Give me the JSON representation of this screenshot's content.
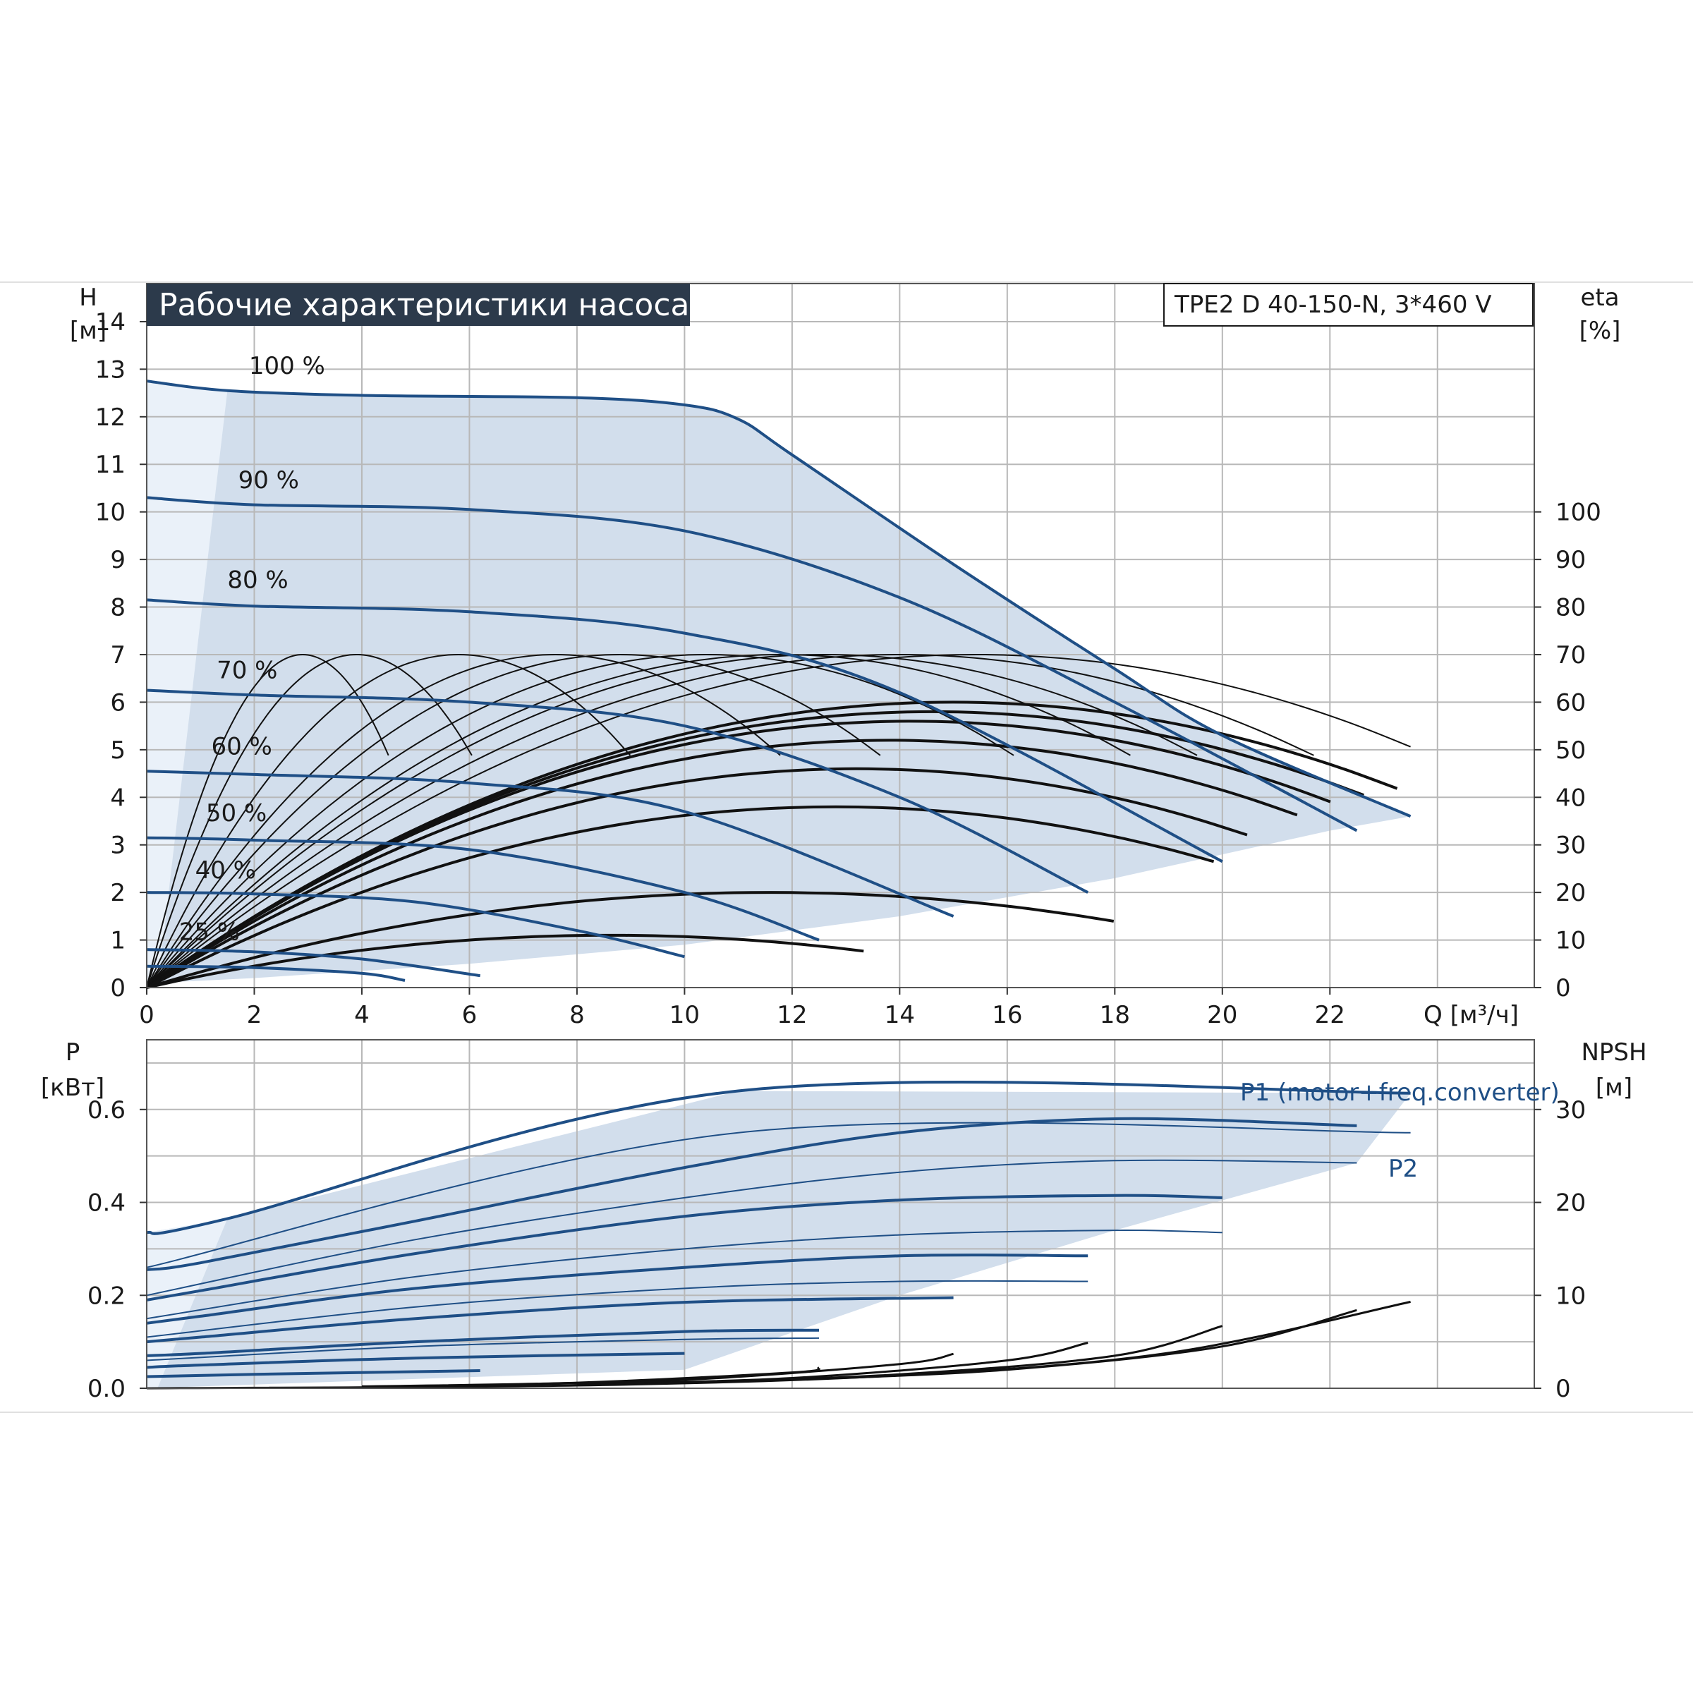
{
  "chart_data": [
    {
      "type": "line",
      "title": "Рабочие характеристики насоса",
      "model": "TPE2 D 40-150-N, 3*460 V",
      "xlabel": "Q [м³/ч]",
      "ylabel_name": "H",
      "ylabel_unit": "[м]",
      "y2label_name": "eta",
      "y2label_unit": "[%]",
      "xlim": [
        0,
        25.8
      ],
      "ylim": [
        0,
        14.8
      ],
      "y2lim": [
        0,
        148
      ],
      "grid": true,
      "xticks": [
        "0",
        "2",
        "4",
        "6",
        "8",
        "10",
        "12",
        "14",
        "16",
        "18",
        "20",
        "22"
      ],
      "yticks": [
        "0",
        "1",
        "2",
        "3",
        "4",
        "5",
        "6",
        "7",
        "8",
        "9",
        "10",
        "11",
        "12",
        "13",
        "14"
      ],
      "y2ticks": [
        "0",
        "10",
        "20",
        "30",
        "40",
        "50",
        "60",
        "70",
        "80",
        "90",
        "100"
      ],
      "operating_area_color": "#d2deec",
      "curve_color": "#1f4f86",
      "eta_color": "#111111",
      "head_curves": [
        {
          "label": "100 %",
          "label_at": [
            1.9,
            12.9
          ],
          "x": [
            0,
            1.5,
            4,
            8,
            10,
            11,
            12,
            15,
            18,
            20,
            23.5
          ],
          "y": [
            12.75,
            12.55,
            12.45,
            12.4,
            12.25,
            11.95,
            11.2,
            8.9,
            6.7,
            5.3,
            3.6
          ]
        },
        {
          "label": "90 %",
          "label_at": [
            1.7,
            10.5
          ],
          "x": [
            0,
            2,
            6,
            10,
            14,
            18,
            22.5
          ],
          "y": [
            10.3,
            10.15,
            10.05,
            9.6,
            8.2,
            6.0,
            3.3
          ]
        },
        {
          "label": "80 %",
          "label_at": [
            1.5,
            8.4
          ],
          "x": [
            0,
            2,
            6,
            10,
            14,
            20
          ],
          "y": [
            8.15,
            8.02,
            7.9,
            7.45,
            6.2,
            2.65
          ]
        },
        {
          "label": "70 %",
          "label_at": [
            1.3,
            6.5
          ],
          "x": [
            0,
            2,
            6,
            10,
            14,
            17.5
          ],
          "y": [
            6.25,
            6.15,
            6.0,
            5.5,
            4.0,
            2.0
          ]
        },
        {
          "label": "60 %",
          "label_at": [
            1.2,
            4.9
          ],
          "x": [
            0,
            2,
            6,
            10,
            15
          ],
          "y": [
            4.55,
            4.48,
            4.3,
            3.7,
            1.5
          ]
        },
        {
          "label": "50 %",
          "label_at": [
            1.1,
            3.5
          ],
          "x": [
            0,
            2,
            6,
            10,
            12.5
          ],
          "y": [
            3.15,
            3.1,
            2.9,
            2.0,
            1.0
          ]
        },
        {
          "label": "40 %",
          "label_at": [
            0.9,
            2.3
          ],
          "x": [
            0,
            2,
            5,
            8,
            10
          ],
          "y": [
            2.0,
            1.97,
            1.8,
            1.2,
            0.65
          ]
        },
        {
          "label": "25 %",
          "label_at": [
            0.6,
            1.0
          ],
          "x": [
            0,
            2,
            4,
            6.2
          ],
          "y": [
            0.8,
            0.75,
            0.6,
            0.25
          ]
        },
        {
          "label": "",
          "x": [
            0,
            2,
            4,
            4.8
          ],
          "y": [
            0.45,
            0.42,
            0.3,
            0.15
          ]
        }
      ],
      "min_boundary": {
        "x": [
          0.2,
          2,
          6,
          10,
          14,
          18,
          22,
          23.5
        ],
        "y": [
          0.1,
          0.2,
          0.5,
          0.9,
          1.5,
          2.3,
          3.3,
          3.6
        ]
      },
      "eta_peak_heads_m": [
        7.0,
        7.0,
        7.0,
        7.0,
        7.0,
        7.0,
        7.0,
        7.0,
        7.0,
        7.0,
        6.0,
        5.8,
        5.6,
        5.2,
        4.6,
        3.8,
        2.0,
        1.1
      ],
      "eta_peak_q": [
        2.9,
        3.9,
        5.8,
        7.6,
        8.8,
        10.4,
        11.8,
        12.6,
        14.0,
        15.4,
        15.0,
        14.6,
        14.2,
        13.8,
        13.2,
        12.8,
        11.6,
        8.6
      ]
    },
    {
      "type": "line",
      "ylabel_name": "P",
      "ylabel_unit": "[кВт]",
      "y2label_name": "NPSH",
      "y2label_unit": "[м]",
      "xlim": [
        0,
        25.8
      ],
      "ylim": [
        0,
        0.75
      ],
      "y2lim": [
        0,
        37.5
      ],
      "yticks": [
        "0.0",
        "0.2",
        "0.4",
        "0.6"
      ],
      "y2ticks": [
        "0",
        "10",
        "20",
        "30"
      ],
      "label_p1": "P1 (motor+freq.converter)",
      "label_p2": "P2",
      "p1_max": {
        "x": [
          0,
          1.5,
          11,
          23.5
        ],
        "y": [
          0.335,
          0.365,
          0.64,
          0.635
        ]
      },
      "p1_curves": [
        {
          "x": [
            0,
            1,
            5,
            10,
            14,
            18,
            22.5
          ],
          "y": [
            0.255,
            0.27,
            0.36,
            0.475,
            0.55,
            0.58,
            0.565
          ]
        },
        {
          "x": [
            0,
            1,
            5,
            10,
            14,
            18,
            20
          ],
          "y": [
            0.19,
            0.21,
            0.29,
            0.37,
            0.405,
            0.415,
            0.41
          ]
        },
        {
          "x": [
            0,
            1,
            5,
            10,
            14,
            17.5
          ],
          "y": [
            0.14,
            0.155,
            0.215,
            0.26,
            0.285,
            0.285
          ]
        },
        {
          "x": [
            0,
            1,
            5,
            10,
            15
          ],
          "y": [
            0.1,
            0.11,
            0.15,
            0.185,
            0.195
          ]
        },
        {
          "x": [
            0,
            1,
            5,
            10,
            12.5
          ],
          "y": [
            0.07,
            0.075,
            0.1,
            0.122,
            0.125
          ]
        },
        {
          "x": [
            0,
            1,
            5,
            10
          ],
          "y": [
            0.045,
            0.05,
            0.065,
            0.075
          ]
        },
        {
          "x": [
            0,
            2,
            6.2
          ],
          "y": [
            0.025,
            0.03,
            0.038
          ]
        }
      ],
      "p2_curves": [
        {
          "x": [
            0,
            11,
            23.5
          ],
          "y": [
            0.26,
            0.55,
            0.55
          ]
        },
        {
          "x": [
            0,
            5,
            10,
            14,
            18,
            22.5
          ],
          "y": [
            0.2,
            0.32,
            0.41,
            0.465,
            0.49,
            0.485
          ]
        },
        {
          "x": [
            0,
            5,
            10,
            14,
            18,
            20
          ],
          "y": [
            0.15,
            0.24,
            0.3,
            0.33,
            0.34,
            0.335
          ]
        },
        {
          "x": [
            0,
            5,
            10,
            14,
            17.5
          ],
          "y": [
            0.11,
            0.175,
            0.215,
            0.23,
            0.23
          ]
        },
        {
          "x": [
            0,
            5,
            10,
            12.5
          ],
          "y": [
            0.06,
            0.09,
            0.105,
            0.108
          ]
        }
      ],
      "npsh_curves": [
        {
          "x": [
            0,
            8,
            14,
            19,
            23.5
          ],
          "y": [
            0,
            0.3,
            1.4,
            3.8,
            9.3
          ]
        },
        {
          "x": [
            12,
            16,
            20,
            22.5
          ],
          "y": [
            0.9,
            2.0,
            4.5,
            8.4
          ]
        },
        {
          "x": [
            10,
            14,
            18,
            20
          ],
          "y": [
            0.6,
            1.5,
            3.5,
            6.7
          ]
        },
        {
          "x": [
            8,
            12,
            16,
            17.5
          ],
          "y": [
            0.4,
            1.1,
            3.0,
            4.9
          ]
        },
        {
          "x": [
            6,
            10,
            14,
            15
          ],
          "y": [
            0.3,
            0.9,
            2.6,
            3.7
          ]
        },
        {
          "x": [
            4,
            8,
            12,
            12.5
          ],
          "y": [
            0.2,
            0.6,
            1.7,
            2.2
          ]
        }
      ],
      "area_min": {
        "x": [
          0,
          10,
          23.5
        ],
        "y": [
          0,
          0.04,
          0.0
        ]
      }
    }
  ]
}
